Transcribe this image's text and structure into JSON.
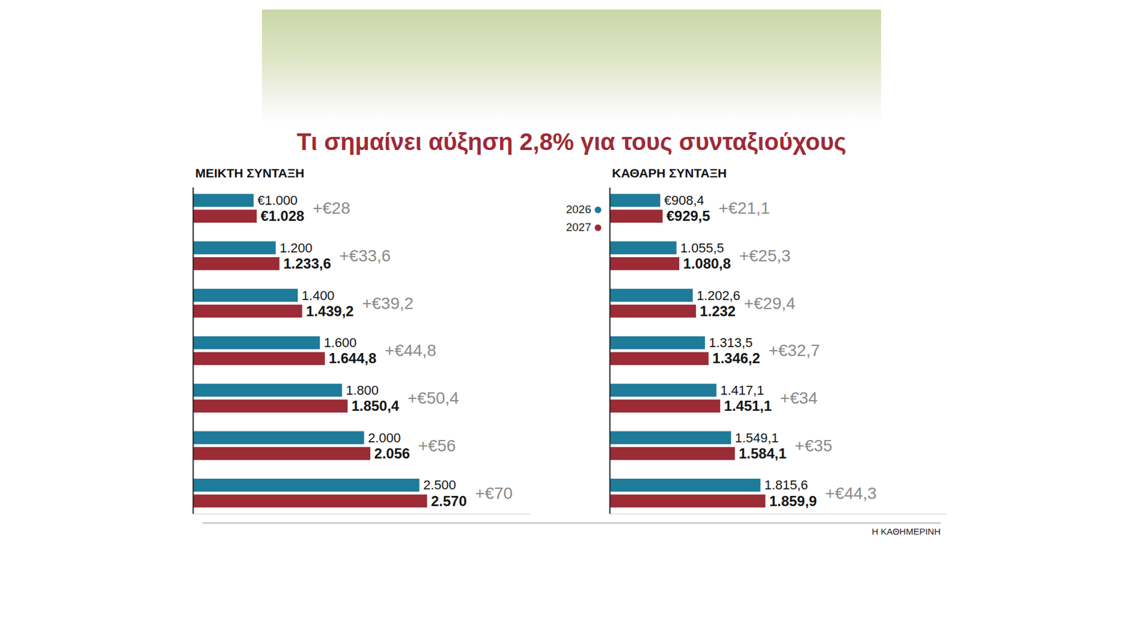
{
  "title": "Τι σημαίνει αύξηση 2,8% για τους συνταξιούχους",
  "source": "Η ΚΑΘΗΜΕΡΙΝΗ",
  "chart_data": [
    {
      "type": "bar",
      "orientation": "horizontal",
      "title": "ΜΕΙΚΤΗ ΣΥΝΤΑΞΗ",
      "categories": [
        null,
        null,
        null,
        null,
        null,
        null,
        null
      ],
      "series": [
        {
          "name": "2026",
          "color": "#1e7b9a",
          "values": [
            1000,
            1200,
            1400,
            1600,
            1800,
            2000,
            2500
          ],
          "value_labels": [
            "€1.000",
            "1.200",
            "1.400",
            "1.600",
            "1.800",
            "2.000",
            "2.500"
          ]
        },
        {
          "name": "2027",
          "color": "#9b2b35",
          "values": [
            1028,
            1233.6,
            1439.2,
            1644.8,
            1850.4,
            2056,
            2570
          ],
          "value_labels": [
            "€1.028",
            "1.233,6",
            "1.439,2",
            "1.644,8",
            "1.850,4",
            "2.056",
            "2.570"
          ]
        }
      ],
      "increases": [
        28,
        33.6,
        39.2,
        44.8,
        50.4,
        56,
        70
      ],
      "increase_labels": [
        "+€28",
        "+€33,6",
        "+€39,2",
        "+€44,8",
        "+€50,4",
        "+€56",
        "+€70"
      ],
      "xlim": [
        450,
        3500
      ],
      "data_labels": true,
      "tick_labels": false
    },
    {
      "type": "bar",
      "orientation": "horizontal",
      "title": "ΚΑΘΑΡΗ ΣΥΝΤΑΞΗ",
      "categories": [
        null,
        null,
        null,
        null,
        null,
        null,
        null
      ],
      "series": [
        {
          "name": "2026",
          "color": "#1e7b9a",
          "values": [
            908.4,
            1055.5,
            1202.6,
            1313.5,
            1417.1,
            1549.1,
            1815.6
          ],
          "value_labels": [
            "€908,4",
            "1.055,5",
            "1.202,6",
            "1.313,5",
            "1.417,1",
            "1.549,1",
            "1.815,6"
          ]
        },
        {
          "name": "2027",
          "color": "#9b2b35",
          "values": [
            929.5,
            1080.8,
            1232,
            1346.2,
            1451.1,
            1584.1,
            1859.9
          ],
          "value_labels": [
            "€929,5",
            "1.080,8",
            "1.232",
            "1.346,2",
            "1.451,1",
            "1.584,1",
            "1.859,9"
          ]
        }
      ],
      "increases": [
        21.1,
        25.3,
        29.4,
        32.7,
        34,
        35,
        44.3
      ],
      "increase_labels": [
        "+€21,1",
        "+€25,3",
        "+€29,4",
        "+€32,7",
        "+€34",
        "+€35",
        "+€44,3"
      ],
      "xlim": [
        450,
        3500
      ],
      "data_labels": true,
      "tick_labels": false,
      "legend": "left"
    }
  ]
}
